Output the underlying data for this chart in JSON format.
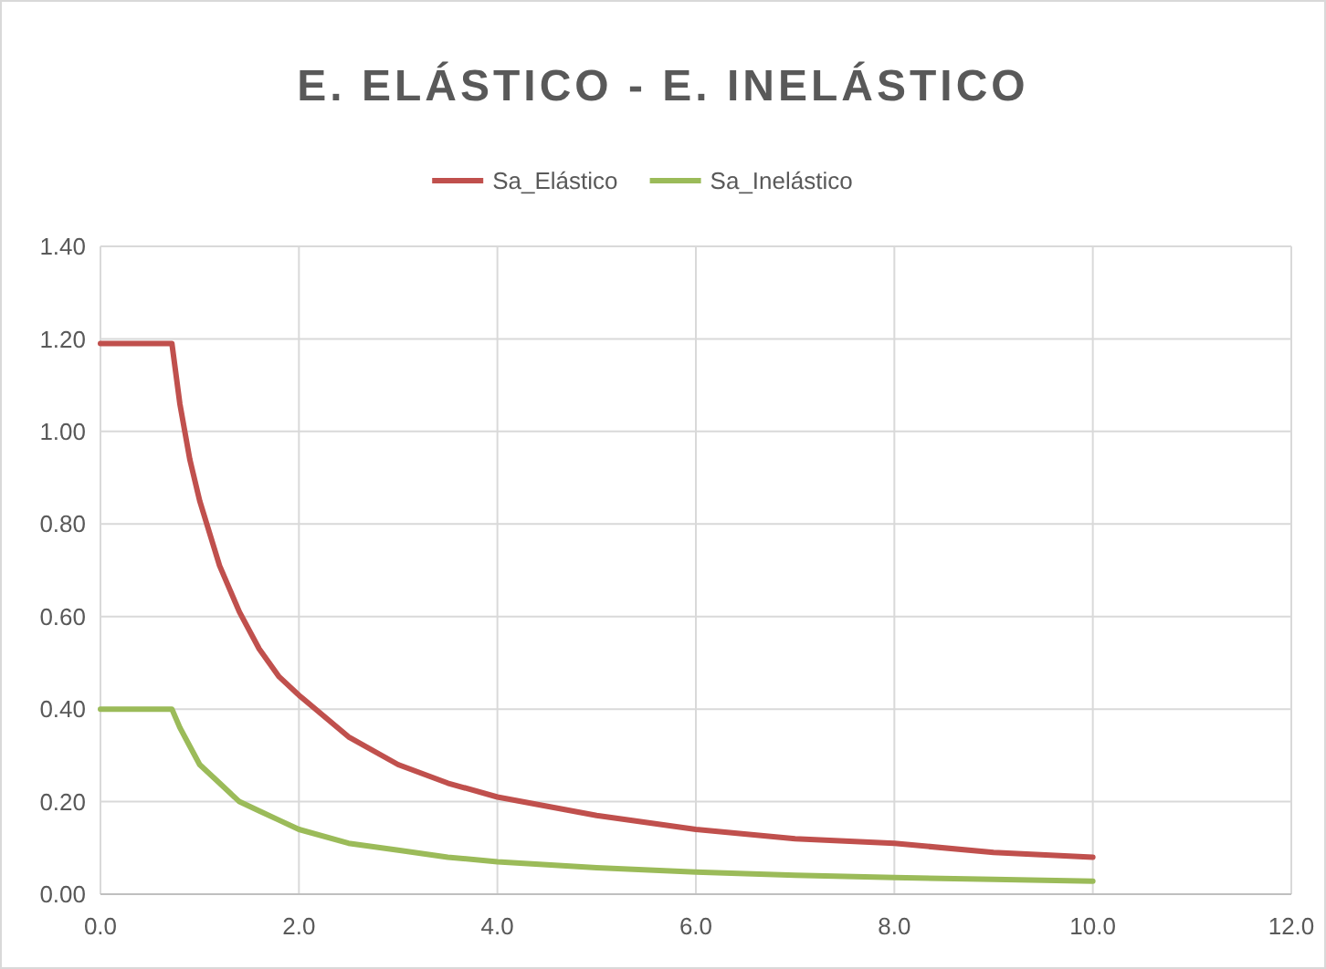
{
  "chart_data": {
    "type": "line",
    "title": "E. ELÁSTICO - E. INELÁSTICO",
    "legend": "top",
    "grid": true,
    "line_style": "solid",
    "x": [
      0,
      0.2,
      0.4,
      0.6,
      0.72,
      0.8,
      0.9,
      1.0,
      1.2,
      1.4,
      1.6,
      1.8,
      2.0,
      2.5,
      3.0,
      3.5,
      4.0,
      5.0,
      6.0,
      7.0,
      8.0,
      9.0,
      10.0
    ],
    "series": [
      {
        "name": "Sa_Elástico",
        "color": "#c0504d",
        "values": [
          1.19,
          1.19,
          1.19,
          1.19,
          1.19,
          1.06,
          0.94,
          0.85,
          0.71,
          0.61,
          0.53,
          0.47,
          0.43,
          0.34,
          0.28,
          0.24,
          0.21,
          0.17,
          0.14,
          0.12,
          0.11,
          0.09,
          0.08
        ]
      },
      {
        "name": "Sa_Inelástico",
        "color": "#9bbb59",
        "values": [
          0.4,
          0.4,
          0.4,
          0.4,
          0.4,
          0.36,
          0.32,
          0.28,
          0.24,
          0.2,
          0.18,
          0.16,
          0.14,
          0.11,
          0.095,
          0.08,
          0.07,
          0.057,
          0.048,
          0.041,
          0.036,
          0.032,
          0.028
        ]
      }
    ],
    "xlim": [
      0,
      12
    ],
    "xticks": [
      {
        "value": 0,
        "label": "0.0"
      },
      {
        "value": 2,
        "label": "2.0"
      },
      {
        "value": 4,
        "label": "4.0"
      },
      {
        "value": 6,
        "label": "6.0"
      },
      {
        "value": 8,
        "label": "8.0"
      },
      {
        "value": 10,
        "label": "10.0"
      },
      {
        "value": 12,
        "label": "12.0"
      }
    ],
    "ylim": [
      0,
      1.4
    ],
    "yticks": [
      {
        "value": 0,
        "label": "0.00"
      },
      {
        "value": 0.2,
        "label": "0.20"
      },
      {
        "value": 0.4,
        "label": "0.40"
      },
      {
        "value": 0.6,
        "label": "0.60"
      },
      {
        "value": 0.8,
        "label": "0.80"
      },
      {
        "value": 1.0,
        "label": "1.00"
      },
      {
        "value": 1.2,
        "label": "1.20"
      },
      {
        "value": 1.4,
        "label": "1.40"
      }
    ]
  }
}
